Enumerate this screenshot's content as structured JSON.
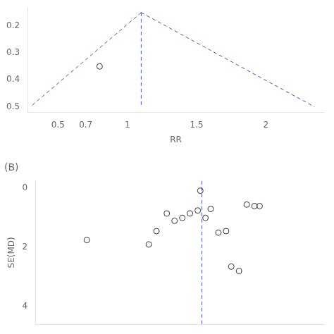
{
  "chart_data": [
    {
      "type": "scatter",
      "xlabel": "RR",
      "xlim": [
        0.28,
        2.42
      ],
      "ylim": [
        0.52,
        0.13
      ],
      "xticks": [
        0.5,
        0.7,
        1,
        1.5,
        2
      ],
      "yticks": [
        0.2,
        0.3,
        0.4,
        0.5
      ],
      "grid": false,
      "series": [
        {
          "type": "line",
          "line_style": "dashed",
          "color": "#4455bb",
          "x": [
            1.1,
            0.3
          ],
          "values": [
            0.15,
            0.5
          ]
        },
        {
          "type": "line",
          "line_style": "dashed",
          "color": "#4455bb",
          "x": [
            1.1,
            2.35
          ],
          "values": [
            0.15,
            0.5
          ]
        },
        {
          "type": "line",
          "line_style": "dashed",
          "color": "#4455bb",
          "x": [
            1.1,
            1.1
          ],
          "values": [
            0.15,
            0.5
          ]
        },
        {
          "type": "scatter",
          "marker": "open_circle",
          "color": "#333333",
          "x": [
            0.8
          ],
          "values": [
            0.35
          ]
        }
      ]
    },
    {
      "type": "scatter",
      "title": "(B)",
      "ylabel": "SE(MD)",
      "xlim": [
        -3.2,
        2.4
      ],
      "ylim": [
        4.6,
        -0.25
      ],
      "xticks": [],
      "yticks": [
        0,
        2,
        4
      ],
      "tick_labels": "y",
      "grid": false,
      "vlines": [
        {
          "x": 0.03,
          "color": "#4455bb",
          "line_style": "dashed"
        }
      ],
      "series": [
        {
          "type": "scatter",
          "marker": "open_circle",
          "color": "#333333",
          "x": [
            -2.2,
            -1.0,
            -0.85,
            -0.65,
            -0.5,
            -0.35,
            -0.2,
            -0.05,
            0.0,
            0.1,
            0.2,
            0.35,
            0.5,
            0.6,
            0.75,
            0.9,
            1.05,
            1.15
          ],
          "values": [
            1.75,
            1.9,
            1.45,
            0.85,
            1.1,
            1.0,
            0.85,
            0.75,
            0.08,
            1.0,
            0.7,
            1.5,
            1.45,
            2.65,
            2.8,
            0.55,
            0.6,
            0.6
          ]
        }
      ]
    }
  ]
}
